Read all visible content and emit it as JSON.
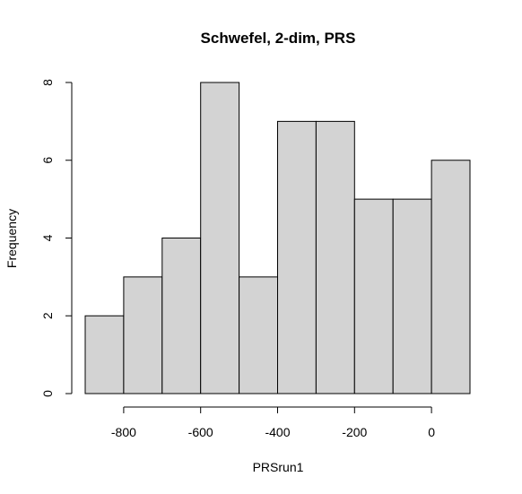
{
  "chart_data": {
    "type": "bar",
    "title": "Schwefel, 2-dim, PRS",
    "xlabel": "PRSrun1",
    "ylabel": "Frequency",
    "bins": [
      {
        "start": -900,
        "end": -800,
        "count": 2
      },
      {
        "start": -800,
        "end": -700,
        "count": 3
      },
      {
        "start": -700,
        "end": -600,
        "count": 4
      },
      {
        "start": -600,
        "end": -500,
        "count": 8
      },
      {
        "start": -500,
        "end": -400,
        "count": 3
      },
      {
        "start": -400,
        "end": -300,
        "count": 7
      },
      {
        "start": -300,
        "end": -200,
        "count": 7
      },
      {
        "start": -200,
        "end": -100,
        "count": 5
      },
      {
        "start": -100,
        "end": 0,
        "count": 5
      },
      {
        "start": 0,
        "end": 100,
        "count": 6
      }
    ],
    "x_ticks": [
      -800,
      -600,
      -400,
      -200,
      0
    ],
    "y_ticks": [
      0,
      2,
      4,
      6,
      8
    ],
    "xlim": [
      -900,
      100
    ],
    "ylim": [
      0,
      8
    ],
    "bar_fill": "#d3d3d3",
    "bar_stroke": "#000000",
    "grid": false
  }
}
